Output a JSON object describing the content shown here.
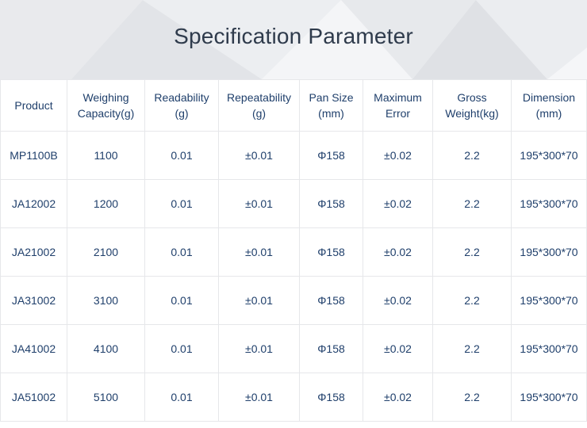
{
  "title": "Specification Parameter",
  "table": {
    "headers": [
      [
        "Product"
      ],
      [
        "Weighing",
        "Capacity(g)"
      ],
      [
        "Readability",
        "(g)"
      ],
      [
        "Repeatability",
        "(g)"
      ],
      [
        "Pan Size",
        "(mm)"
      ],
      [
        "Maximum",
        "Error"
      ],
      [
        "Gross",
        "Weight(kg)"
      ],
      [
        "Dimension",
        "(mm)"
      ]
    ],
    "rows": [
      [
        "MP1100B",
        "1100",
        "0.01",
        "±0.01",
        "Φ158",
        "±0.02",
        "2.2",
        "195*300*70"
      ],
      [
        "JA12002",
        "1200",
        "0.01",
        "±0.01",
        "Φ158",
        "±0.02",
        "2.2",
        "195*300*70"
      ],
      [
        "JA21002",
        "2100",
        "0.01",
        "±0.01",
        "Φ158",
        "±0.02",
        "2.2",
        "195*300*70"
      ],
      [
        "JA31002",
        "3100",
        "0.01",
        "±0.01",
        "Φ158",
        "±0.02",
        "2.2",
        "195*300*70"
      ],
      [
        "JA41002",
        "4100",
        "0.01",
        "±0.01",
        "Φ158",
        "±0.02",
        "2.2",
        "195*300*70"
      ],
      [
        "JA51002",
        "5100",
        "0.01",
        "±0.01",
        "Φ158",
        "±0.02",
        "2.2",
        "195*300*70"
      ]
    ]
  }
}
